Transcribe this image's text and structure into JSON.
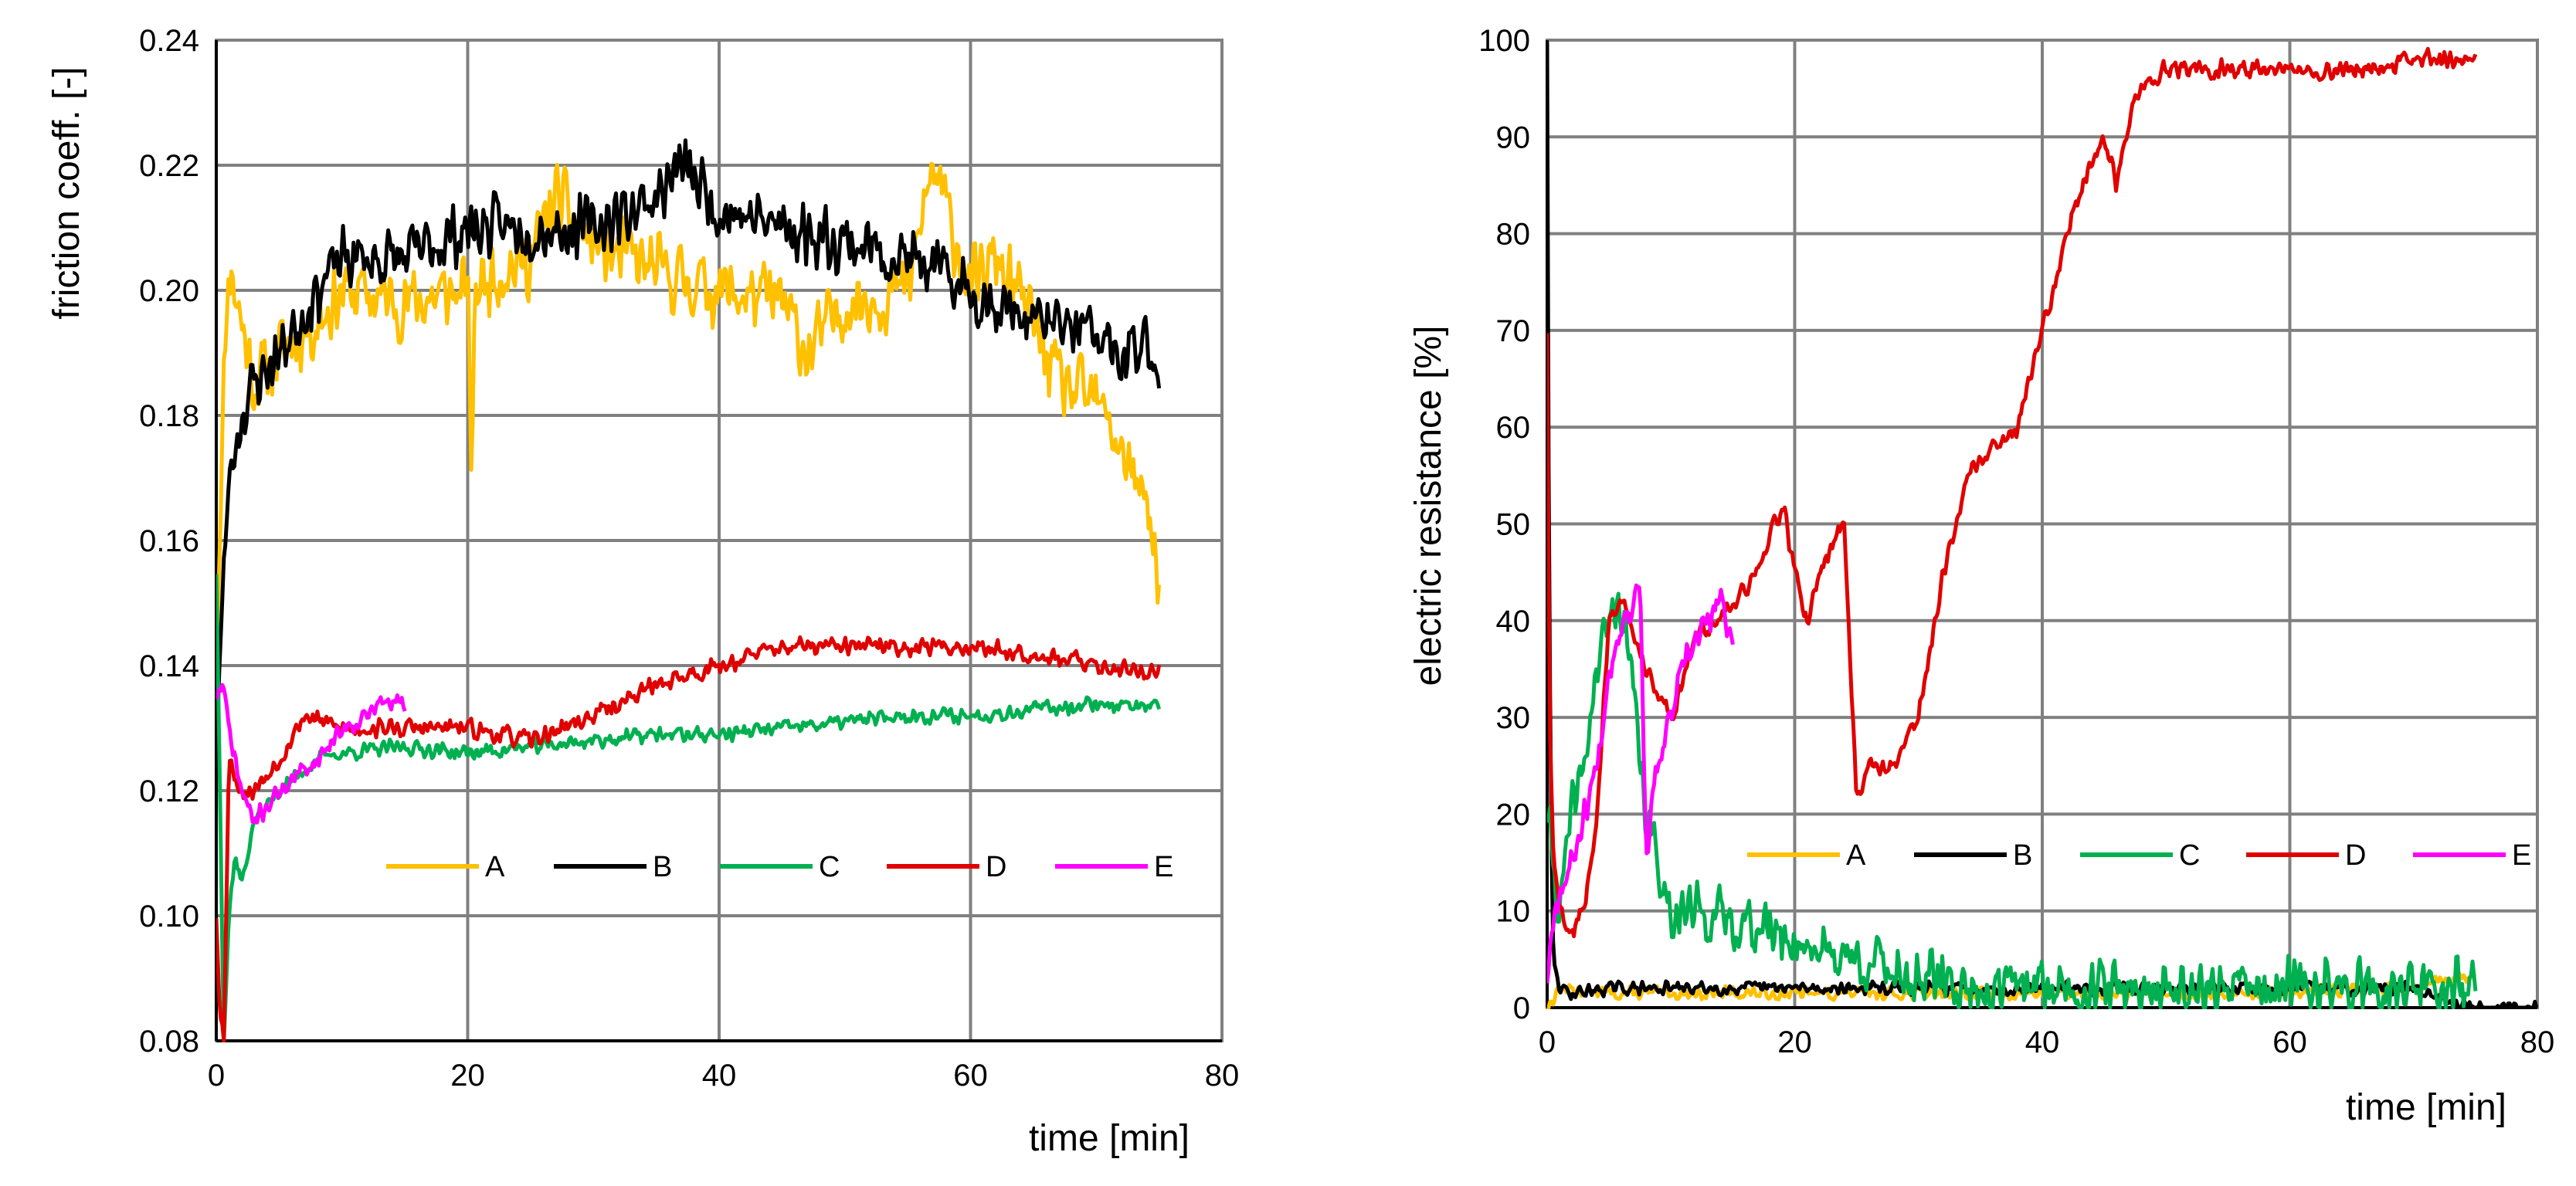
{
  "chart_data": [
    {
      "type": "line",
      "title": "",
      "xlabel": "time [min]",
      "ylabel": "friction coeff. [-]",
      "xlim": [
        0,
        80
      ],
      "ylim": [
        0.08,
        0.24
      ],
      "xticks": [
        0,
        20,
        40,
        60,
        80
      ],
      "yticks": [
        0.08,
        0.1,
        0.12,
        0.14,
        0.16,
        0.18,
        0.2,
        0.22,
        0.24
      ],
      "xtick_labels": [
        "0",
        "20",
        "40",
        "60",
        "80"
      ],
      "ytick_labels": [
        "0.08",
        "0.10",
        "0.12",
        "0.14",
        "0.16",
        "0.18",
        "0.20",
        "0.22",
        "0.24"
      ],
      "grid": true,
      "legend": "bottom-right",
      "series": [
        {
          "name": "A",
          "color": "#FFC000",
          "noise": 0.007,
          "seed": 11,
          "x": [
            0,
            0.5,
            1,
            2,
            3,
            5,
            8,
            10,
            15,
            20,
            20.3,
            20.6,
            22,
            25,
            27,
            30,
            35,
            40,
            45,
            47,
            50,
            55,
            57,
            60,
            62,
            65,
            67,
            70,
            72,
            74,
            75
          ],
          "y": [
            0.14,
            0.18,
            0.205,
            0.195,
            0.185,
            0.19,
            0.195,
            0.2,
            0.198,
            0.2,
            0.172,
            0.2,
            0.203,
            0.205,
            0.215,
            0.207,
            0.203,
            0.2,
            0.198,
            0.19,
            0.198,
            0.2,
            0.22,
            0.2,
            0.205,
            0.195,
            0.185,
            0.182,
            0.175,
            0.165,
            0.155
          ]
        },
        {
          "name": "B",
          "color": "#000000",
          "noise": 0.006,
          "seed": 23,
          "x": [
            0,
            0.5,
            1,
            2,
            3,
            5,
            8,
            10,
            15,
            20,
            25,
            30,
            35,
            37,
            40,
            45,
            50,
            55,
            60,
            65,
            70,
            72,
            74,
            75
          ],
          "y": [
            0.13,
            0.15,
            0.17,
            0.18,
            0.185,
            0.19,
            0.2,
            0.205,
            0.205,
            0.21,
            0.21,
            0.21,
            0.215,
            0.22,
            0.213,
            0.21,
            0.208,
            0.205,
            0.2,
            0.195,
            0.193,
            0.188,
            0.192,
            0.188
          ]
        },
        {
          "name": "C",
          "color": "#00B050",
          "noise": 0.0015,
          "seed": 37,
          "x": [
            0,
            0.3,
            0.6,
            1,
            1.5,
            2,
            3,
            5,
            8,
            10,
            15,
            20,
            25,
            30,
            35,
            40,
            45,
            50,
            55,
            60,
            65,
            70,
            75
          ],
          "y": [
            0.155,
            0.12,
            0.08,
            0.1,
            0.11,
            0.105,
            0.115,
            0.12,
            0.125,
            0.126,
            0.127,
            0.126,
            0.127,
            0.128,
            0.129,
            0.129,
            0.13,
            0.131,
            0.132,
            0.132,
            0.133,
            0.134,
            0.133
          ]
        },
        {
          "name": "D",
          "color": "#E00000",
          "noise": 0.0018,
          "seed": 53,
          "x": [
            0,
            0.3,
            0.6,
            1,
            2,
            3,
            5,
            7,
            10,
            15,
            20,
            25,
            30,
            35,
            40,
            45,
            50,
            55,
            60,
            65,
            70,
            75
          ],
          "y": [
            0.1,
            0.085,
            0.08,
            0.125,
            0.12,
            0.12,
            0.125,
            0.132,
            0.13,
            0.13,
            0.13,
            0.128,
            0.132,
            0.137,
            0.14,
            0.143,
            0.143,
            0.143,
            0.143,
            0.142,
            0.14,
            0.139
          ]
        },
        {
          "name": "E",
          "color": "#FF00FF",
          "noise": 0.0018,
          "seed": 71,
          "x": [
            0,
            0.5,
            1,
            2,
            3,
            5,
            8,
            10,
            12,
            13,
            15
          ],
          "y": [
            0.135,
            0.137,
            0.13,
            0.12,
            0.115,
            0.12,
            0.125,
            0.13,
            0.132,
            0.134,
            0.134
          ]
        }
      ]
    },
    {
      "type": "line",
      "title": "",
      "xlabel": "time [min]",
      "ylabel": "electric resistance [%]",
      "xlim": [
        0,
        80
      ],
      "ylim": [
        0,
        100
      ],
      "xticks": [
        0,
        20,
        40,
        60,
        80
      ],
      "yticks": [
        0,
        10,
        20,
        30,
        40,
        50,
        60,
        70,
        80,
        90,
        100
      ],
      "xtick_labels": [
        "0",
        "20",
        "40",
        "60",
        "80"
      ],
      "ytick_labels": [
        "0",
        "10",
        "20",
        "30",
        "40",
        "50",
        "60",
        "70",
        "80",
        "90",
        "100"
      ],
      "grid": true,
      "legend": "bottom-right",
      "series": [
        {
          "name": "A",
          "color": "#FFC000",
          "noise": 0.8,
          "seed": 13,
          "x": [
            0,
            0.5,
            1,
            5,
            10,
            20,
            30,
            40,
            50,
            60,
            65,
            70,
            72,
            75
          ],
          "y": [
            0,
            1,
            2,
            1.5,
            1.5,
            1.5,
            1.5,
            1.5,
            1.5,
            1.5,
            2,
            2,
            3,
            3
          ]
        },
        {
          "name": "B",
          "color": "#000000",
          "noise": 0.8,
          "seed": 29,
          "x": [
            0,
            0.1,
            0.3,
            0.5,
            1,
            2,
            5,
            10,
            20,
            30,
            40,
            50,
            60,
            70,
            75,
            80
          ],
          "y": [
            100,
            60,
            20,
            5,
            2,
            1.5,
            2,
            2,
            2,
            2,
            2,
            2,
            2,
            2,
            0,
            0
          ]
        },
        {
          "name": "C",
          "color": "#00B050",
          "noise": 3.5,
          "seed": 41,
          "x": [
            0,
            0.5,
            1,
            2,
            3,
            4,
            5,
            6,
            7,
            7.5,
            8,
            8.5,
            9,
            10,
            12,
            15,
            18,
            20,
            22,
            25,
            28,
            30,
            35,
            40,
            50,
            60,
            70,
            75
          ],
          "y": [
            20,
            15,
            10,
            20,
            25,
            35,
            40,
            42,
            32,
            25,
            20,
            17,
            15,
            10,
            10,
            9,
            8,
            7,
            6,
            5,
            4,
            3,
            2,
            2,
            2,
            2,
            2,
            2
          ]
        },
        {
          "name": "D",
          "color": "#E00000",
          "noise": 1.2,
          "seed": 59,
          "x": [
            0,
            0.2,
            0.5,
            1,
            2,
            3,
            4,
            5,
            6,
            8,
            10,
            12,
            15,
            17,
            19,
            20,
            21,
            22,
            23,
            24,
            25,
            26,
            28,
            30,
            32,
            34,
            36,
            38,
            40,
            42,
            44,
            45,
            46,
            47,
            48,
            50,
            55,
            60,
            65,
            70,
            75
          ],
          "y": [
            70,
            30,
            15,
            10,
            8,
            10,
            20,
            40,
            42,
            35,
            30,
            38,
            42,
            45,
            52,
            45,
            40,
            45,
            48,
            50,
            22,
            25,
            25,
            30,
            45,
            55,
            58,
            60,
            70,
            80,
            88,
            90,
            85,
            92,
            95,
            97,
            97,
            97,
            97,
            98,
            98
          ]
        },
        {
          "name": "E",
          "color": "#FF00FF",
          "noise": 2.0,
          "seed": 67,
          "x": [
            0,
            0.5,
            1,
            2,
            3,
            4,
            5,
            6,
            7,
            7.5,
            8,
            8.3,
            9,
            10,
            11,
            12,
            13,
            14,
            15
          ],
          "y": [
            3,
            10,
            12,
            15,
            20,
            25,
            35,
            40,
            42,
            45,
            15,
            20,
            25,
            30,
            35,
            38,
            40,
            42,
            38
          ]
        }
      ]
    }
  ]
}
